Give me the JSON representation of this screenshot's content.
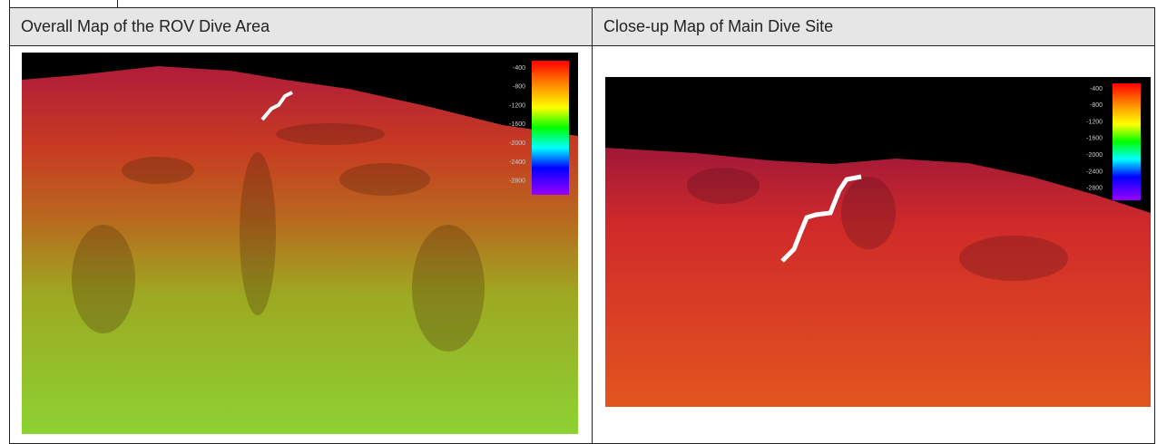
{
  "table": {
    "header": [
      "Overall Map of the ROV Dive Area",
      "Close-up Map of Main Dive Site"
    ]
  },
  "images": [
    {
      "colorbar_labels": [
        -400,
        -800,
        -1200,
        -1600,
        -2000,
        -2400,
        -2800
      ]
    },
    {
      "colorbar_labels": [
        -400,
        -800,
        -1200,
        -1600,
        -2000,
        -2400,
        -2800
      ]
    }
  ]
}
